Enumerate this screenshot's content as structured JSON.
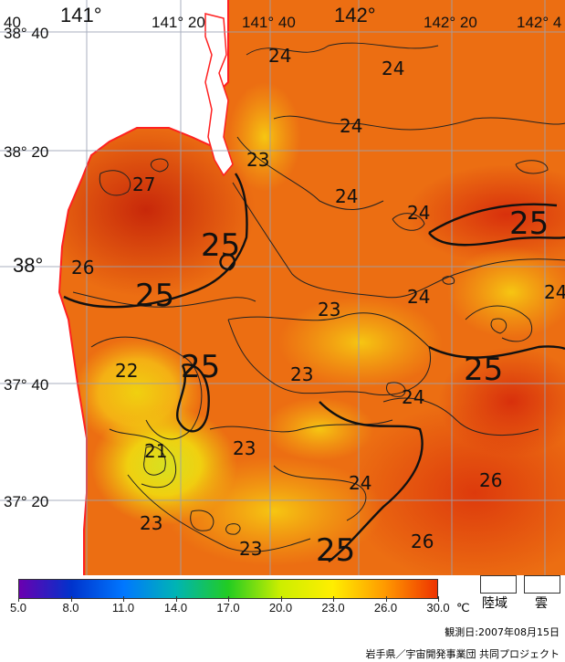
{
  "map": {
    "lon_labels": [
      "141°",
      "141° 20",
      "141° 40",
      "142°",
      "142° 20",
      "142° 4"
    ],
    "lat_labels": [
      "38° 40",
      "38° 20",
      "38°",
      "37° 40",
      "37° 20"
    ],
    "corner_label": "40",
    "contour_labels": [
      "24",
      "24",
      "24",
      "23",
      "24",
      "27",
      "24",
      "25",
      "25",
      "26",
      "25",
      "24",
      "23",
      "24",
      "25",
      "22",
      "23",
      "25",
      "24",
      "21",
      "23",
      "24",
      "26",
      "23",
      "23",
      "25",
      "26"
    ]
  },
  "legend": {
    "colorbar_ticks": [
      "5.0",
      "8.0",
      "11.0",
      "14.0",
      "17.0",
      "20.0",
      "23.0",
      "26.0",
      "30.0"
    ],
    "unit": "℃",
    "colorbar_colors": [
      "#6a00b0",
      "#0033cc",
      "#0077ff",
      "#00b4b4",
      "#22cc22",
      "#ccee00",
      "#ffee00",
      "#ff9900",
      "#ee3300"
    ],
    "land_label": "陸域",
    "cloud_label": "雲"
  },
  "footer": {
    "date": "観測日:2007年08月15日",
    "credit": "岩手県／宇宙開発事業団 共同プロジェクト"
  }
}
